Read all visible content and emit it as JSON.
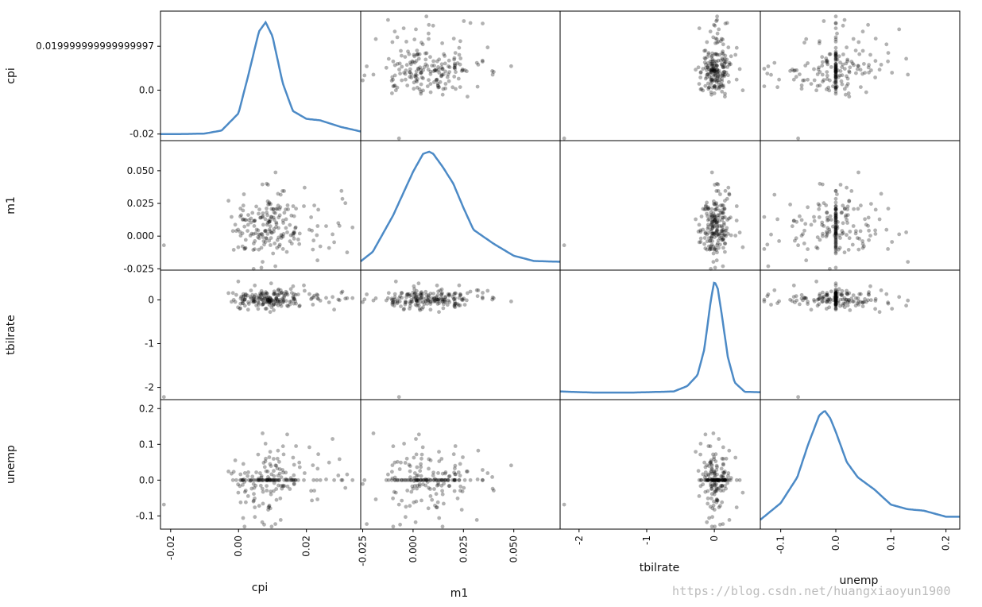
{
  "chart_data": {
    "type": "scatter",
    "title": "",
    "variables": [
      "cpi",
      "m1",
      "tbilrate",
      "unemp"
    ],
    "diagonal": "kde",
    "axis_ranges": {
      "cpi": [
        -0.023,
        0.036
      ],
      "m1": [
        -0.026,
        0.073
      ],
      "tbilrate": [
        -2.28,
        0.68
      ],
      "unemp": [
        -0.137,
        0.225
      ]
    },
    "x_ticks": {
      "cpi": {
        "values": [
          -0.02,
          0.0,
          0.02
        ],
        "labels": [
          "-0.02",
          "0.00",
          "0.02"
        ]
      },
      "m1": {
        "values": [
          -0.025,
          0.0,
          0.025,
          0.05
        ],
        "labels": [
          "-0.025",
          "0.000",
          "0.025",
          "0.050"
        ]
      },
      "tbilrate": {
        "values": [
          -2,
          -1,
          0
        ],
        "labels": [
          "-2",
          "-1",
          "0"
        ]
      },
      "unemp": {
        "values": [
          -0.1,
          0.0,
          0.1,
          0.2
        ],
        "labels": [
          "-0.1",
          "0.0",
          "0.1",
          "0.2"
        ]
      }
    },
    "y_ticks": {
      "cpi": {
        "values": [
          -0.02,
          0.0,
          0.02
        ],
        "labels": [
          "-0.02",
          "0.0",
          "0.019999999999999997"
        ]
      },
      "m1": {
        "values": [
          -0.025,
          0.0,
          0.025,
          0.05
        ],
        "labels": [
          "-0.025",
          "0.000",
          "0.025",
          "0.050"
        ]
      },
      "tbilrate": {
        "values": [
          -2,
          -1,
          0
        ],
        "labels": [
          "-2",
          "-1",
          "0"
        ]
      },
      "unemp": {
        "values": [
          -0.1,
          0.0,
          0.1,
          0.2
        ],
        "labels": [
          "-0.1",
          "0.0",
          "0.1",
          "0.2"
        ]
      }
    },
    "kde": {
      "cpi": {
        "x": [
          -0.023,
          -0.02,
          -0.015,
          -0.01,
          -0.005,
          0.0,
          0.003,
          0.006,
          0.008,
          0.01,
          0.013,
          0.016,
          0.02,
          0.024,
          0.03,
          0.036
        ],
        "density": [
          0.05,
          0.04,
          0.07,
          0.15,
          0.8,
          4.5,
          13.0,
          22.0,
          24.0,
          21.0,
          11.0,
          5.0,
          3.3,
          3.0,
          1.6,
          0.6
        ]
      },
      "m1": {
        "x": [
          -0.026,
          -0.02,
          -0.01,
          0.0,
          0.005,
          0.008,
          0.01,
          0.015,
          0.02,
          0.025,
          0.03,
          0.04,
          0.05,
          0.06,
          0.073
        ],
        "density": [
          0.6,
          3.0,
          12.0,
          23.0,
          27.5,
          28.0,
          27.5,
          24.0,
          20.0,
          14.0,
          8.5,
          5.0,
          2.0,
          0.7,
          0.5
        ]
      },
      "tbilrate": {
        "x": [
          -2.28,
          -1.8,
          -1.2,
          -0.6,
          -0.4,
          -0.25,
          -0.15,
          -0.05,
          0.0,
          0.05,
          0.1,
          0.2,
          0.3,
          0.45,
          0.68
        ],
        "density": [
          0.05,
          0.02,
          0.02,
          0.05,
          0.2,
          0.5,
          1.2,
          2.6,
          3.1,
          2.9,
          2.3,
          1.0,
          0.3,
          0.04,
          0.03
        ]
      },
      "unemp": {
        "x": [
          -0.137,
          -0.1,
          -0.07,
          -0.05,
          -0.03,
          -0.02,
          -0.01,
          0.0,
          0.02,
          0.04,
          0.07,
          0.1,
          0.13,
          0.16,
          0.2,
          0.225
        ],
        "density": [
          0.2,
          1.3,
          3.0,
          5.2,
          7.1,
          7.4,
          6.9,
          6.0,
          4.0,
          3.0,
          2.2,
          1.2,
          0.9,
          0.8,
          0.4,
          0.4
        ]
      }
    },
    "scatter_color": "#000000",
    "scatter_alpha": 0.3,
    "kde_color": "#4c8ac6"
  },
  "watermark": "https://blog.csdn.net/huangxiaoyun1900"
}
